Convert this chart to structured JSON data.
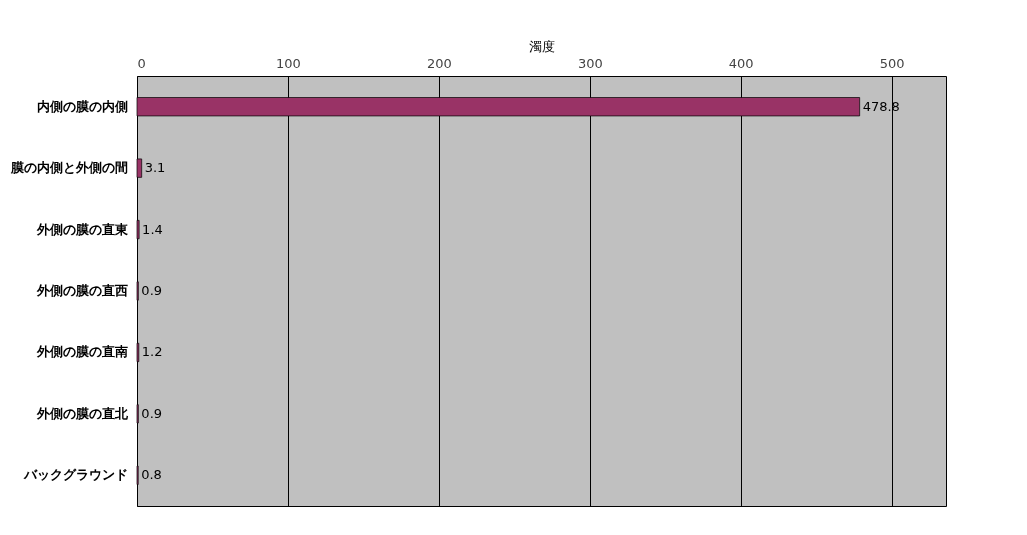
{
  "chart_data": {
    "type": "bar",
    "orientation": "horizontal",
    "xlabel": "濁度",
    "categories": [
      "内側の膜の内側",
      "膜の内側と外側の間",
      "外側の膜の直東",
      "外側の膜の直西",
      "外側の膜の直南",
      "外側の膜の直北",
      "バックグラウンド"
    ],
    "values": [
      478.8,
      3.1,
      1.4,
      0.9,
      1.2,
      0.9,
      0.8
    ],
    "color": "#993366",
    "xlim": [
      0,
      536
    ],
    "xticks": [
      0,
      100,
      200,
      300,
      400,
      500
    ],
    "grid": "x",
    "data_labels": true
  }
}
